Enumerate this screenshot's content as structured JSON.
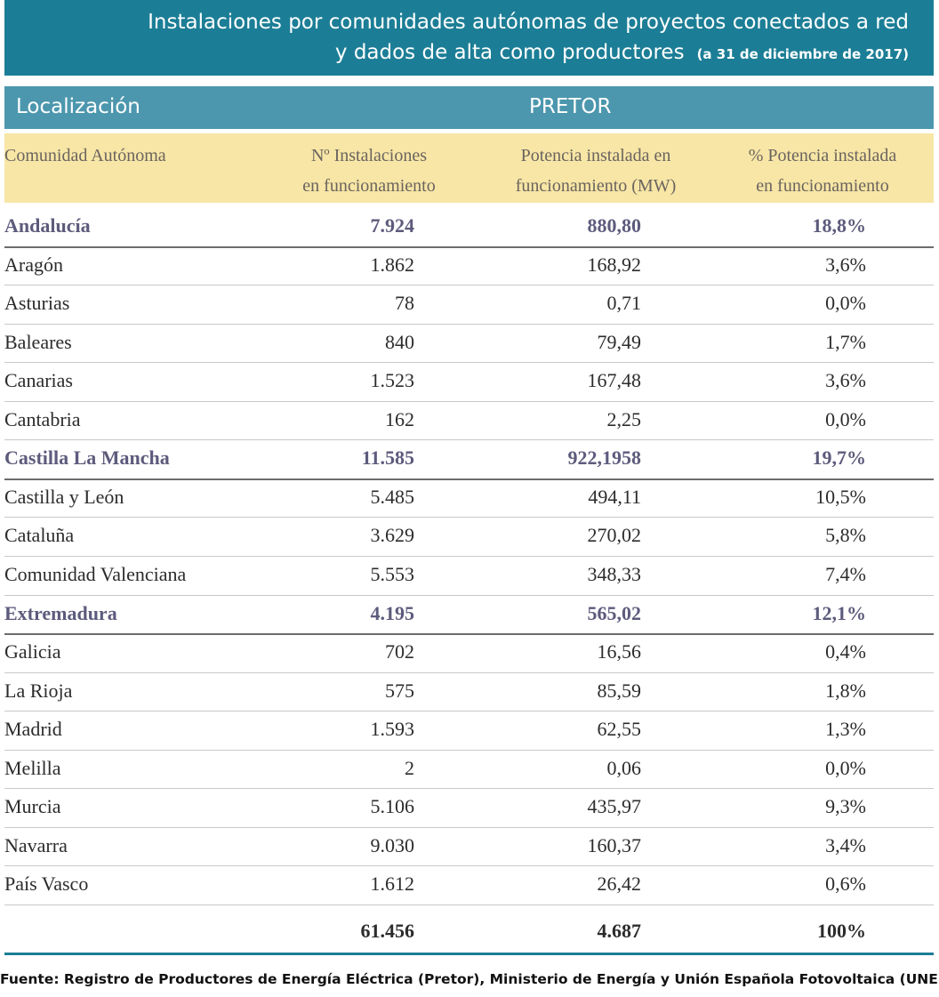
{
  "header": {
    "title_line1": "Instalaciones por comunidades autónomas de proyectos conectados a red",
    "title_line2": "y dados de alta como productores",
    "date": "(a 31 de diciembre de 2017)"
  },
  "table": {
    "band": [
      "Localización",
      "PRETOR"
    ],
    "columns": [
      [
        "Comunidad Autónoma"
      ],
      [
        "Nº Instalaciones",
        "en funcionamiento"
      ],
      [
        "Potencia instalada en",
        "funcionamiento (MW)"
      ],
      [
        "% Potencia instalada",
        "en funcionamiento"
      ]
    ],
    "rows": [
      {
        "cells": [
          "Andalucía",
          "7.924",
          "880,80",
          "18,8%"
        ],
        "highlight": true
      },
      {
        "cells": [
          "Aragón",
          "1.862",
          "168,92",
          "3,6%"
        ],
        "highlight": false
      },
      {
        "cells": [
          "Asturias",
          "78",
          "0,71",
          "0,0%"
        ],
        "highlight": false
      },
      {
        "cells": [
          "Baleares",
          "840",
          "79,49",
          "1,7%"
        ],
        "highlight": false
      },
      {
        "cells": [
          "Canarias",
          "1.523",
          "167,48",
          "3,6%"
        ],
        "highlight": false
      },
      {
        "cells": [
          "Cantabria",
          "162",
          "2,25",
          "0,0%"
        ],
        "highlight": false
      },
      {
        "cells": [
          "Castilla La Mancha",
          "11.585",
          "922,1958",
          "19,7%"
        ],
        "highlight": true
      },
      {
        "cells": [
          "Castilla y León",
          "5.485",
          "494,11",
          "10,5%"
        ],
        "highlight": false
      },
      {
        "cells": [
          "Cataluña",
          "3.629",
          "270,02",
          "5,8%"
        ],
        "highlight": false
      },
      {
        "cells": [
          "Comunidad Valenciana",
          "5.553",
          "348,33",
          "7,4%"
        ],
        "highlight": false
      },
      {
        "cells": [
          "Extremadura",
          "4.195",
          "565,02",
          "12,1%"
        ],
        "highlight": true
      },
      {
        "cells": [
          "Galicia",
          "702",
          "16,56",
          "0,4%"
        ],
        "highlight": false
      },
      {
        "cells": [
          "La Rioja",
          "575",
          "85,59",
          "1,8%"
        ],
        "highlight": false
      },
      {
        "cells": [
          "Madrid",
          "1.593",
          "62,55",
          "1,3%"
        ],
        "highlight": false
      },
      {
        "cells": [
          "Melilla",
          "2",
          "0,06",
          "0,0%"
        ],
        "highlight": false
      },
      {
        "cells": [
          "Murcia",
          "5.106",
          "435,97",
          "9,3%"
        ],
        "highlight": false
      },
      {
        "cells": [
          "Navarra",
          "9.030",
          "160,37",
          "3,4%"
        ],
        "highlight": false
      },
      {
        "cells": [
          "País Vasco",
          "1.612",
          "26,42",
          "0,6%"
        ],
        "highlight": false
      }
    ],
    "total": [
      "61.456",
      "4.687",
      "100%"
    ]
  },
  "footer": {
    "source": "Fuente: Registro de Productores de Energía Eléctrica (Pretor), Ministerio de Energía y Unión Española Fotovoltaica (UNEF)"
  }
}
